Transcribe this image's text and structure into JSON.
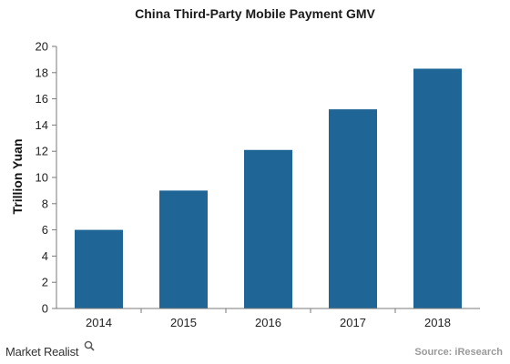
{
  "chart_data": {
    "type": "bar",
    "title": "China Third-Party Mobile Payment GMV",
    "ylabel": "Trillion Yuan",
    "xlabel": "",
    "categories": [
      "2014",
      "2015",
      "2016",
      "2017",
      "2018"
    ],
    "values": [
      6.0,
      9.0,
      12.1,
      15.2,
      18.3
    ],
    "ylim": [
      0,
      20
    ],
    "yticks": [
      "0",
      "2",
      "4",
      "6",
      "8",
      "10",
      "12",
      "14",
      "16",
      "18",
      "20"
    ],
    "bar_color": "#1f6596",
    "grid": false,
    "legend": "none"
  },
  "footer": {
    "brand": "Market Realist",
    "source": "Source: iResearch"
  }
}
